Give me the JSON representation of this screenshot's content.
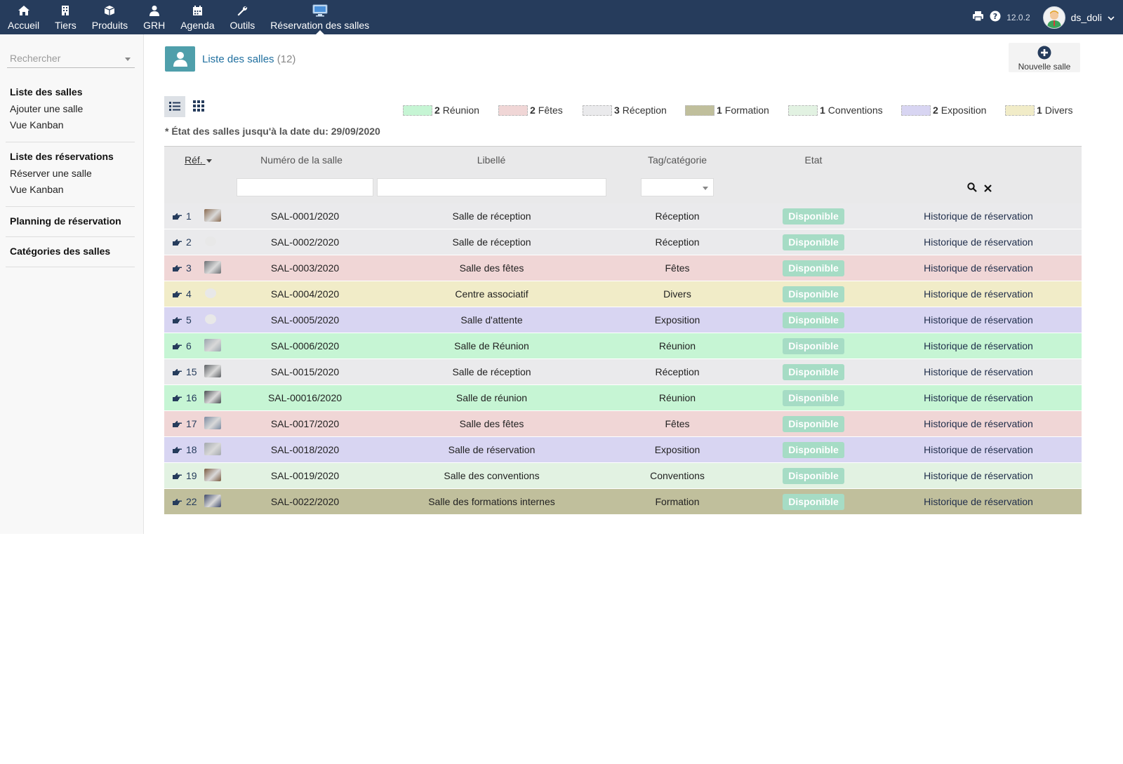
{
  "topbar": {
    "nav": [
      {
        "label": "Accueil",
        "icon": "home-icon"
      },
      {
        "label": "Tiers",
        "icon": "building-icon"
      },
      {
        "label": "Produits",
        "icon": "cube-icon"
      },
      {
        "label": "GRH",
        "icon": "user-tie-icon"
      },
      {
        "label": "Agenda",
        "icon": "calendar-icon"
      },
      {
        "label": "Outils",
        "icon": "wrench-icon"
      },
      {
        "label": "Réservation des salles",
        "icon": "monitor-icon"
      }
    ],
    "version": "12.0.2",
    "username": "ds_doli"
  },
  "sidebar": {
    "search_placeholder": "Rechercher",
    "groups": [
      {
        "head": "Liste des salles",
        "links": [
          "Ajouter une salle",
          "Vue Kanban"
        ]
      },
      {
        "head": "Liste des réservations",
        "links": [
          "Réserver une salle",
          "Vue Kanban"
        ]
      },
      {
        "head": "Planning de réservation",
        "links": []
      },
      {
        "head": "Catégories des salles",
        "links": []
      }
    ]
  },
  "main": {
    "title": "Liste des salles",
    "count": "(12)",
    "new_button": "Nouvelle salle",
    "date_note": "État des salles jusqu'à la date du: 29/09/2020"
  },
  "legend": [
    {
      "count": "2",
      "label": "Réunion",
      "color": "#c6f5d4"
    },
    {
      "count": "2",
      "label": "Fêtes",
      "color": "#f0d6d6"
    },
    {
      "count": "3",
      "label": "Réception",
      "color": "#eaeaec"
    },
    {
      "count": "1",
      "label": "Formation",
      "color": "#c0bf9c"
    },
    {
      "count": "1",
      "label": "Conventions",
      "color": "#e2f2e2"
    },
    {
      "count": "2",
      "label": "Exposition",
      "color": "#d8d5f2"
    },
    {
      "count": "1",
      "label": "Divers",
      "color": "#f1ecc8"
    }
  ],
  "table": {
    "headers": {
      "ref": "Réf.",
      "numero": "Numéro de la salle",
      "libelle": "Libellé",
      "tag": "Tag/catégorie",
      "etat": "Etat"
    },
    "status_label": "Disponible",
    "history_label": "Historique de réservation",
    "rows": [
      {
        "ref": "1",
        "numero": "SAL-0001/2020",
        "libelle": "Salle de réception",
        "tag": "Réception",
        "color": "#eaeaec",
        "thumb": "#8a6a4f"
      },
      {
        "ref": "2",
        "numero": "SAL-0002/2020",
        "libelle": "Salle de réception",
        "tag": "Réception",
        "color": "#eaeaec",
        "thumb": ""
      },
      {
        "ref": "3",
        "numero": "SAL-0003/2020",
        "libelle": "Salle des fêtes",
        "tag": "Fêtes",
        "color": "#f0d6d6",
        "thumb": "#6b6f73"
      },
      {
        "ref": "4",
        "numero": "SAL-0004/2020",
        "libelle": "Centre associatif",
        "tag": "Divers",
        "color": "#f1ecc8",
        "thumb": ""
      },
      {
        "ref": "5",
        "numero": "SAL-0005/2020",
        "libelle": "Salle d'attente",
        "tag": "Exposition",
        "color": "#d8d5f2",
        "thumb": ""
      },
      {
        "ref": "6",
        "numero": "SAL-0006/2020",
        "libelle": "Salle de Réunion",
        "tag": "Réunion",
        "color": "#c6f5d4",
        "thumb": "#9aa4ad"
      },
      {
        "ref": "15",
        "numero": "SAL-0015/2020",
        "libelle": "Salle de réception",
        "tag": "Réception",
        "color": "#eaeaec",
        "thumb": "#5c5f63"
      },
      {
        "ref": "16",
        "numero": "SAL-00016/2020",
        "libelle": "Salle de réunion",
        "tag": "Réunion",
        "color": "#c6f5d4",
        "thumb": "#4a4e52"
      },
      {
        "ref": "17",
        "numero": "SAL-0017/2020",
        "libelle": "Salle des fêtes",
        "tag": "Fêtes",
        "color": "#f0d6d6",
        "thumb": "#7b8aa0"
      },
      {
        "ref": "18",
        "numero": "SAL-0018/2020",
        "libelle": "Salle de réservation",
        "tag": "Exposition",
        "color": "#d8d5f2",
        "thumb": "#a3a8ad"
      },
      {
        "ref": "19",
        "numero": "SAL-0019/2020",
        "libelle": "Salle des conventions",
        "tag": "Conventions",
        "color": "#e2f2e2",
        "thumb": "#7a5a3f"
      },
      {
        "ref": "22",
        "numero": "SAL-0022/2020",
        "libelle": "Salle des formations internes",
        "tag": "Formation",
        "color": "#c0bf9c",
        "thumb": "#3f4a6a"
      }
    ]
  }
}
